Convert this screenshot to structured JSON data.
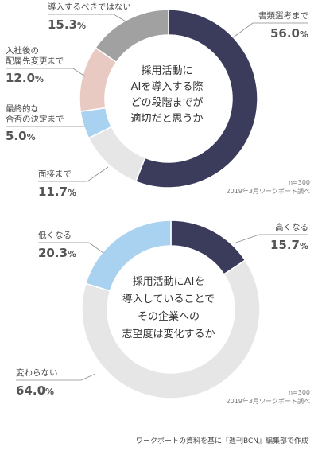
{
  "chart_data": [
    {
      "type": "pie",
      "donut": true,
      "center_text": [
        "採用活動に",
        "AIを導入する際",
        "どの段階までが",
        "適切だと思うか"
      ],
      "slices": [
        {
          "label": "書類選考まで",
          "value": 56.0,
          "color": "#3b3c5c"
        },
        {
          "label": "面接まで",
          "value": 11.7,
          "color": "#e6e6e6"
        },
        {
          "label": "最終的な合否の決定まで",
          "label_lines": [
            "最終的な",
            "合否の決定まで"
          ],
          "value": 5.0,
          "color": "#a9d2f0"
        },
        {
          "label": "入社後の配属先変更まで",
          "label_lines": [
            "入社後の",
            "配属先変更まで"
          ],
          "value": 12.0,
          "color": "#e9cac3"
        },
        {
          "label": "導入するべきではない",
          "value": 15.3,
          "color": "#a1a1a1"
        }
      ],
      "note_lines": [
        "n=300",
        "2019年3月ワークポート調べ"
      ]
    },
    {
      "type": "pie",
      "donut": true,
      "center_text": [
        "採用活動にAIを",
        "導入していることで",
        "その企業への",
        "志望度は変化するか"
      ],
      "slices": [
        {
          "label": "高くなる",
          "value": 15.7,
          "color": "#3b3c5c"
        },
        {
          "label": "変わらない",
          "value": 64.0,
          "color": "#e6e6e6"
        },
        {
          "label": "低くなる",
          "value": 20.3,
          "color": "#a9d2f0"
        }
      ],
      "note_lines": [
        "n=300",
        "2019年3月ワークポート調べ"
      ]
    }
  ],
  "source": "ワークポートの資料を基に『週刊BCN』編集部で作成",
  "unit": "%"
}
